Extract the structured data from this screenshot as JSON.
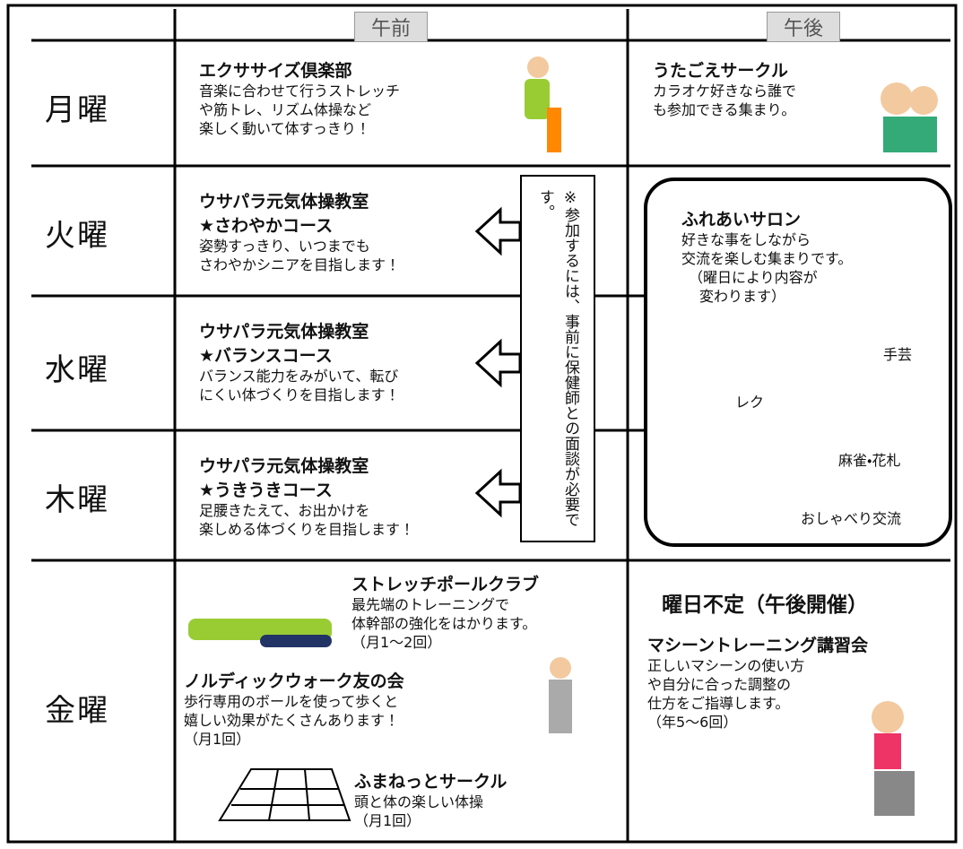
{
  "header": {
    "am": "午前",
    "pm": "午後"
  },
  "days": [
    "月曜",
    "火曜",
    "水曜",
    "木曜",
    "金曜"
  ],
  "monday_am": {
    "title": "エクササイズ倶楽部",
    "lines": [
      "音楽に合わせて行うストレッチ",
      "や筋トレ、リズム体操など",
      "楽しく動いて体すっきり！"
    ]
  },
  "monday_pm": {
    "title": "うたごえサークル",
    "lines": [
      "カラオケ好きなら誰で",
      "も参加できる集まり。"
    ]
  },
  "tuesday_am": {
    "title": "ウサパラ元気体操教室",
    "course": "★さわやかコース",
    "lines": [
      "姿勢すっきり、いつまでも",
      "さわやかシニアを目指します！"
    ]
  },
  "wednesday_am": {
    "title": "ウサパラ元気体操教室",
    "course": "★バランスコース",
    "lines": [
      "バランス能力をみがいて、転び",
      "にくい体づくりを目指します！"
    ]
  },
  "thursday_am": {
    "title": "ウサパラ元気体操教室",
    "course": "★うきうきコース",
    "lines": [
      "足腰きたえて、お出かけを",
      "楽しめる体づくりを目指します！"
    ]
  },
  "note": "※参加するには、事前に保健師との面談が必要です。",
  "salon": {
    "title": "ふれあいサロン",
    "lines": [
      "好きな事をしながら",
      "交流を楽しむ集まりです。",
      "（曜日により内容が",
      "変わります）"
    ],
    "activities": [
      "手芸",
      "レク",
      "麻雀・花札",
      "おしゃべり交流"
    ]
  },
  "friday_am": [
    {
      "title": "ストレッチポールクラブ",
      "lines": [
        "最先端のトレーニングで",
        "体幹部の強化をはかります。",
        "（月1～2回）"
      ]
    },
    {
      "title": "ノルディックウォーク友の会",
      "lines": [
        "歩行専用のボールを使って歩くと",
        "嬉しい効果がたくさんあります！",
        "（月1回）"
      ]
    },
    {
      "title": "ふまねっとサークル",
      "lines": [
        "頭と体の楽しい体操",
        "（月1回）"
      ]
    }
  ],
  "friday_pm": {
    "heading": "曜日不定（午後開催）",
    "title": "マシーントレーニング講習会",
    "lines": [
      "正しいマシーンの使い方",
      "や自分に合った調整の",
      "仕方をご指導します。",
      "（年5～6回）"
    ]
  }
}
